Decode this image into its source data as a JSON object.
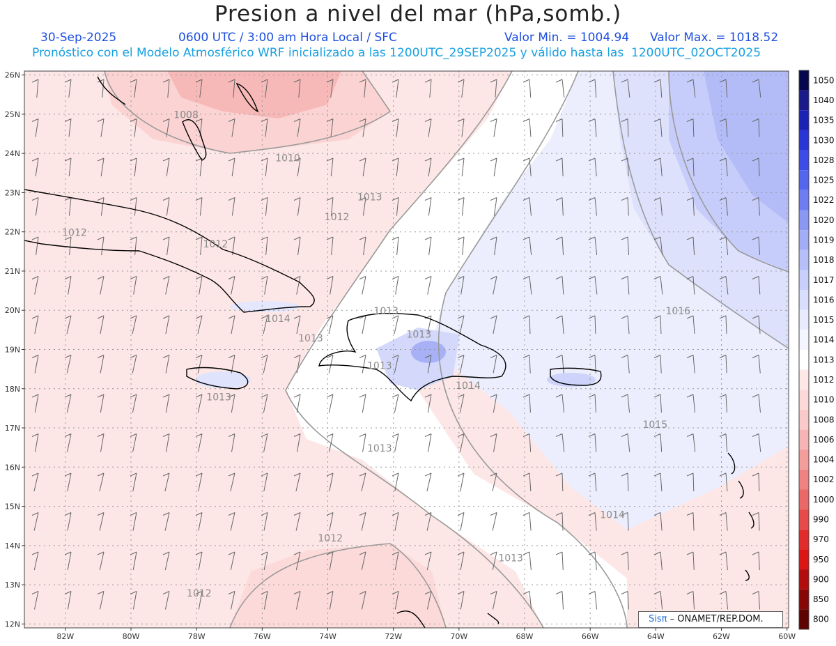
{
  "header": {
    "title": "Presion a nivel del mar (hPa,somb.)",
    "date": "30-Sep-2025",
    "time_info": "0600 UTC / 3:00 am Hora Local / SFC",
    "value_min": "Valor Min. = 1004.94",
    "value_max": "Valor Max. = 1018.52",
    "forecast_note": "Pronóstico con el Modelo Atmosférico WRF inicializado a las 1200UTC_29SEP2025 y válido hasta las  1200UTC_02OCT2025"
  },
  "axes": {
    "lat_labels": [
      "26N",
      "25N",
      "24N",
      "23N",
      "22N",
      "21N",
      "20N",
      "19N",
      "18N",
      "17N",
      "16N",
      "15N",
      "14N",
      "13N",
      "12N"
    ],
    "lon_labels": [
      "82W",
      "80W",
      "78W",
      "76W",
      "74W",
      "72W",
      "70W",
      "68W",
      "66W",
      "64W",
      "62W",
      "60W"
    ]
  },
  "isobar_labels": [
    {
      "text": "1008",
      "lat": 24.9,
      "lon": -78.7
    },
    {
      "text": "1010",
      "lat": 23.8,
      "lon": -75.6
    },
    {
      "text": "1013",
      "lat": 22.8,
      "lon": -73.1
    },
    {
      "text": "1012",
      "lat": 22.3,
      "lon": -74.1
    },
    {
      "text": "1012",
      "lat": 21.9,
      "lon": -82.1
    },
    {
      "text": "1012",
      "lat": 21.6,
      "lon": -77.8
    },
    {
      "text": "1016",
      "lat": 19.9,
      "lon": -63.7
    },
    {
      "text": "1013",
      "lat": 19.9,
      "lon": -72.6
    },
    {
      "text": "1014",
      "lat": 19.7,
      "lon": -75.9
    },
    {
      "text": "1013",
      "lat": 19.3,
      "lon": -71.6
    },
    {
      "text": "1013",
      "lat": 19.2,
      "lon": -74.9
    },
    {
      "text": "1013",
      "lat": 18.5,
      "lon": -72.8
    },
    {
      "text": "1014",
      "lat": 18.0,
      "lon": -70.1
    },
    {
      "text": "1013",
      "lat": 17.7,
      "lon": -77.7
    },
    {
      "text": "1015",
      "lat": 17.0,
      "lon": -64.4
    },
    {
      "text": "1013",
      "lat": 16.4,
      "lon": -72.8
    },
    {
      "text": "1014",
      "lat": 14.7,
      "lon": -65.7
    },
    {
      "text": "1012",
      "lat": 14.1,
      "lon": -74.3
    },
    {
      "text": "1013",
      "lat": 13.6,
      "lon": -68.8
    },
    {
      "text": "1012",
      "lat": 12.7,
      "lon": -78.3
    }
  ],
  "colorbar": {
    "levels": [
      "1050",
      "1040",
      "1035",
      "1030",
      "1028",
      "1025",
      "1022",
      "1020",
      "1019",
      "1018",
      "1017",
      "1016",
      "1015",
      "1014",
      "1013",
      "1012",
      "1010",
      "1008",
      "1006",
      "1004",
      "1002",
      "1000",
      "990",
      "970",
      "950",
      "900",
      "850",
      "800"
    ],
    "colors": [
      "#06064e",
      "#1a1a8a",
      "#1d22b6",
      "#2a35d6",
      "#3d4ce6",
      "#5566ee",
      "#6e7ef2",
      "#8a98f4",
      "#a3adf6",
      "#b6bff8",
      "#c8cffa",
      "#d9defc",
      "#e8ebfd",
      "#f4f5fe",
      "#ffffff",
      "#fde7e7",
      "#fcd9d9",
      "#facaca",
      "#f7b4b4",
      "#f39d9d",
      "#ef8383",
      "#ea6868",
      "#e64a4a",
      "#e22c2c",
      "#dc1515",
      "#b20c0c",
      "#870606",
      "#5e0202"
    ]
  },
  "credit": {
    "brand": "Sisπ",
    "org": "– ONAMET/REP.DOM."
  }
}
